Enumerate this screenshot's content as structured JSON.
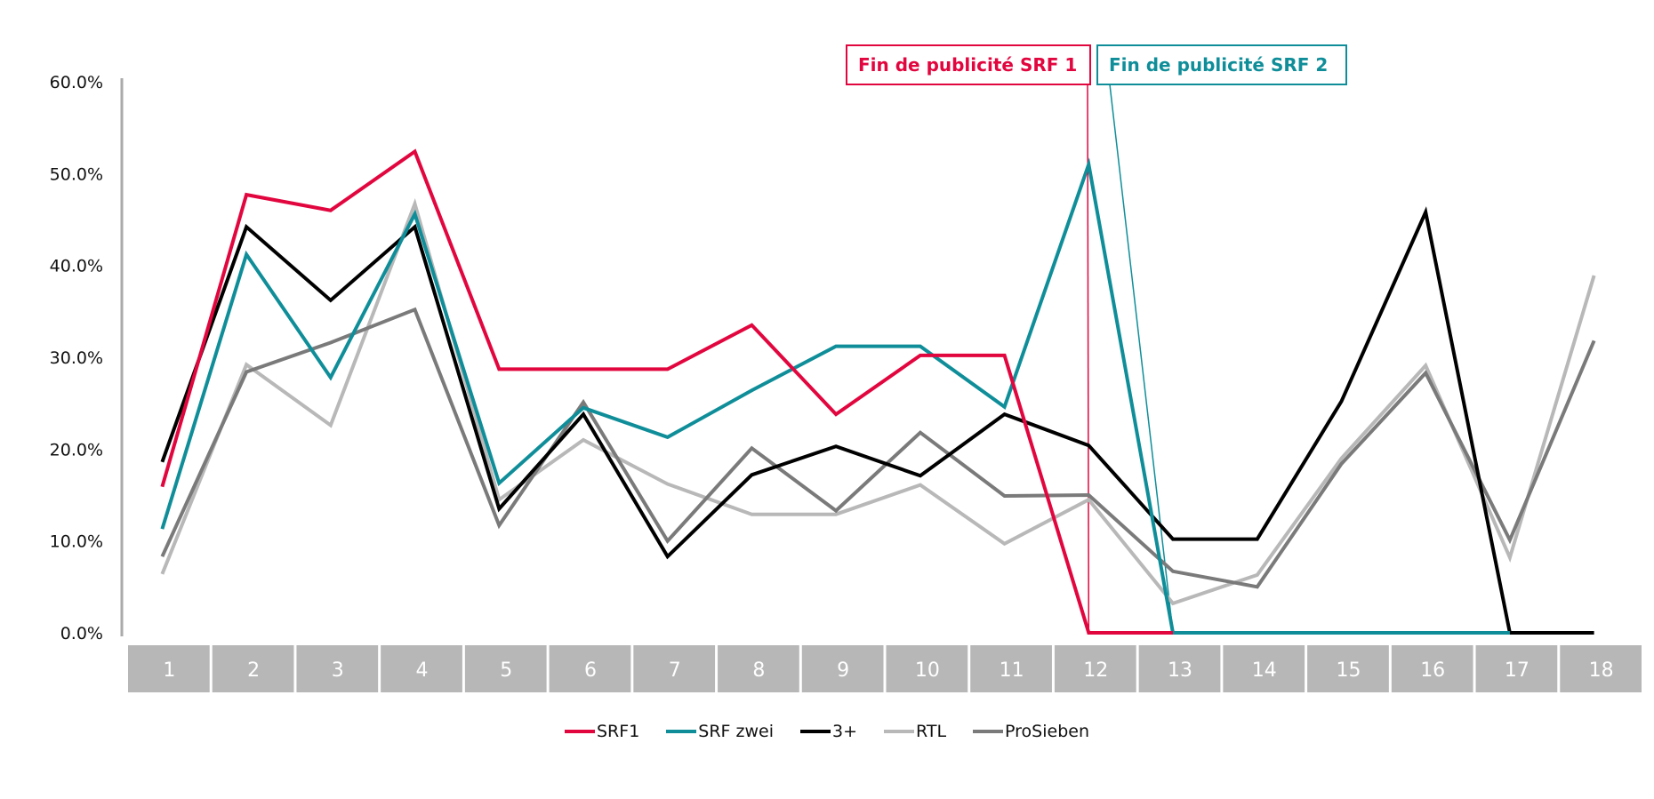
{
  "chart_data": {
    "type": "line",
    "title": "",
    "xlabel": "",
    "ylabel": "",
    "ylim": [
      0,
      60
    ],
    "yticks": [
      "0.0%",
      "10.0%",
      "20.0%",
      "30.0%",
      "40.0%",
      "50.0%",
      "60.0%"
    ],
    "ytick_values": [
      0,
      10,
      20,
      30,
      40,
      50,
      60
    ],
    "categories": [
      "1",
      "2",
      "3",
      "4",
      "5",
      "6",
      "7",
      "8",
      "9",
      "10",
      "11",
      "12",
      "13",
      "14",
      "15",
      "16",
      "17",
      "18"
    ],
    "grid": false,
    "legend_position": "bottom-center",
    "series": [
      {
        "name": "SRF1",
        "color": "#e2063f",
        "values": [
          15.9,
          47.7,
          46.0,
          52.4,
          28.7,
          28.7,
          28.7,
          33.5,
          23.8,
          30.2,
          30.2,
          0,
          0,
          null,
          null,
          null,
          null,
          null
        ]
      },
      {
        "name": "SRF zwei",
        "color": "#0f8e99",
        "values": [
          11.3,
          41.2,
          27.8,
          45.6,
          16.3,
          24.5,
          21.3,
          26.4,
          31.2,
          31.2,
          24.6,
          51.0,
          0,
          0,
          0,
          0,
          0,
          null
        ]
      },
      {
        "name": "3+",
        "color": "#000000",
        "values": [
          18.6,
          44.2,
          36.2,
          44.2,
          13.5,
          23.8,
          8.3,
          17.2,
          20.3,
          17.1,
          23.8,
          20.4,
          10.2,
          10.2,
          25.2,
          45.8,
          0,
          0
        ]
      },
      {
        "name": "RTL",
        "color": "#b8b8b8",
        "values": [
          6.4,
          29.2,
          22.6,
          46.7,
          14.5,
          21.0,
          16.2,
          12.9,
          12.9,
          16.1,
          9.7,
          14.5,
          3.2,
          6.3,
          19.0,
          29.1,
          8.2,
          38.9
        ]
      },
      {
        "name": "ProSieben",
        "color": "#7a7a7a",
        "values": [
          8.3,
          28.4,
          31.6,
          35.2,
          11.7,
          25.1,
          10.0,
          20.1,
          13.3,
          21.8,
          14.9,
          15.0,
          6.7,
          5.0,
          18.4,
          28.3,
          10.1,
          31.8
        ]
      }
    ],
    "annotations": [
      {
        "text": "Fin de publicité SRF 1",
        "color": "#e2063f",
        "at_category": "12"
      },
      {
        "text": "Fin de publicité SRF 2",
        "color": "#0f8e99",
        "at_category": "13"
      }
    ],
    "category_band_color": "#b7b7b7",
    "axis_color": "#aaaaaa"
  }
}
